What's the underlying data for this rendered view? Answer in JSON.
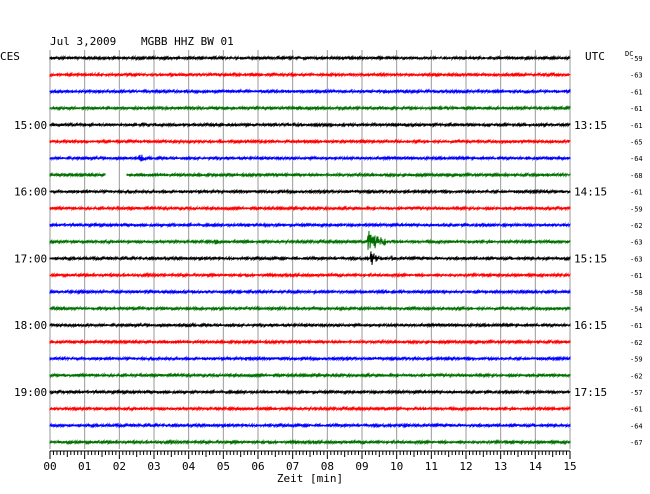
{
  "header": {
    "date": "Jul 3,2009",
    "station": "MGBB HHZ BW 01",
    "left_tz": "CES",
    "right_tz": "UTC",
    "dc_label": "DC"
  },
  "chart_data": {
    "type": "line",
    "xlabel": "Zeit [min]",
    "xlim": [
      0,
      15
    ],
    "x_ticks": [
      "00",
      "01",
      "02",
      "03",
      "04",
      "05",
      "06",
      "07",
      "08",
      "09",
      "10",
      "11",
      "12",
      "13",
      "14",
      "15"
    ],
    "row_count": 24,
    "rows_per_hour": 4,
    "minutes_per_row": 15,
    "left_time_labels": [
      {
        "row": 4,
        "text": "15:00"
      },
      {
        "row": 8,
        "text": "16:00"
      },
      {
        "row": 12,
        "text": "17:00"
      },
      {
        "row": 16,
        "text": "18:00"
      },
      {
        "row": 20,
        "text": "19:00"
      }
    ],
    "right_time_labels": [
      {
        "row": 4,
        "text": "13:15"
      },
      {
        "row": 8,
        "text": "14:15"
      },
      {
        "row": 12,
        "text": "15:15"
      },
      {
        "row": 16,
        "text": "16:15"
      },
      {
        "row": 20,
        "text": "17:15"
      }
    ],
    "dc_values": [
      "-59",
      "-63",
      "-61",
      "-61",
      "-61",
      "-65",
      "-64",
      "-68",
      "-61",
      "-59",
      "-62",
      "-63",
      "-63",
      "-61",
      "-58",
      "-54",
      "-61",
      "-62",
      "-59",
      "-62",
      "-57",
      "-61",
      "-64",
      "-67"
    ],
    "trace_colors": [
      "#000000",
      "#ff0000",
      "#0000ff",
      "#007000"
    ],
    "events": [
      {
        "row": 4,
        "minute": 5.3,
        "amplitude": 1.8,
        "duration": 0.3
      },
      {
        "row": 6,
        "minute": 2.6,
        "amplitude": 4.5,
        "duration": 0.5
      },
      {
        "row": 7,
        "minute": 1.6,
        "amplitude": 0,
        "duration": 0.6,
        "kind": "gap"
      },
      {
        "row": 10,
        "minute": 3.6,
        "amplitude": 2.5,
        "duration": 0.2
      },
      {
        "row": 10,
        "minute": 5.7,
        "amplitude": 2.5,
        "duration": 0.2
      },
      {
        "row": 11,
        "minute": 4.8,
        "amplitude": 2.5,
        "duration": 0.5
      },
      {
        "row": 11,
        "minute": 9.2,
        "amplitude": 11,
        "duration": 0.9
      },
      {
        "row": 12,
        "minute": 9.3,
        "amplitude": 8,
        "duration": 0.4
      },
      {
        "row": 12,
        "minute": 9.9,
        "amplitude": 3,
        "duration": 0.2
      },
      {
        "row": 14,
        "minute": 1.5,
        "amplitude": 2,
        "duration": 0.3
      },
      {
        "row": 18,
        "minute": 5.7,
        "amplitude": 3.5,
        "duration": 0.5
      },
      {
        "row": 19,
        "minute": 2.6,
        "amplitude": 2,
        "duration": 0.3
      },
      {
        "row": 22,
        "minute": 5.7,
        "amplitude": 1.6,
        "duration": 0.2
      }
    ]
  }
}
